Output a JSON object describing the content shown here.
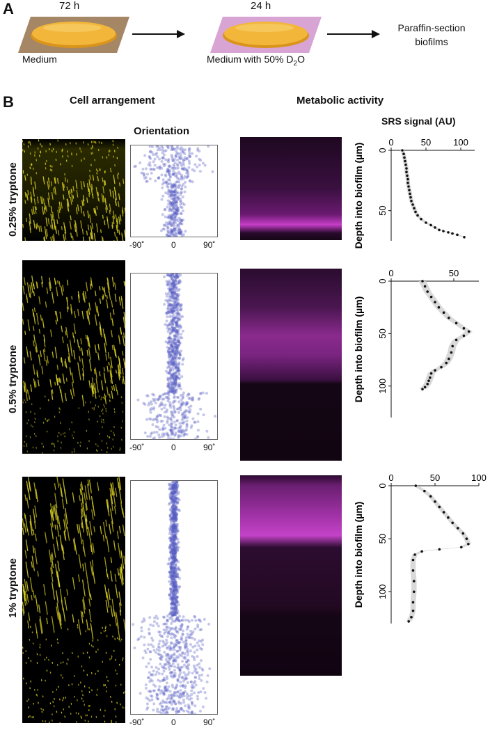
{
  "panel_a": {
    "letter": "A",
    "step1_time": "72 h",
    "step1_label": "Medium",
    "step2_time": "24 h",
    "step2_label_pre": "Medium with 50% D",
    "step2_label_sub": "2",
    "step2_label_post": "O",
    "step3_line1": "Paraffin-section",
    "step3_line2": "biofilms",
    "colors": {
      "dish": "#f2b63a",
      "medium": "#a58665",
      "d2o_medium": "#d8a4d4"
    }
  },
  "panel_b": {
    "letter": "B",
    "col_cell": "Cell arrangement",
    "col_metabolic": "Metabolic activity",
    "orientation_title": "Orientation",
    "orient_ticks": [
      "-90˚",
      "0",
      "90˚"
    ],
    "srs_title": "SRS signal (AU)",
    "depth_label": "Depth into biofilm (µm)",
    "rows": [
      {
        "label": "0.25% tryptone"
      },
      {
        "label": "0.5% tryptone"
      },
      {
        "label": "1% tryptone"
      }
    ]
  },
  "chart_data": [
    {
      "type": "scatter",
      "title": "SRS signal (AU)",
      "xlabel": "SRS signal (AU)",
      "ylabel": "Depth into biofilm (µm)",
      "xlim": [
        0,
        120
      ],
      "ylim": [
        0,
        75
      ],
      "xticks": [
        0,
        50,
        100
      ],
      "yticks": [
        0,
        50
      ],
      "series": [
        {
          "points": [
            [
              16,
              0
            ],
            [
              18,
              3
            ],
            [
              19,
              6
            ],
            [
              20,
              9
            ],
            [
              21,
              12
            ],
            [
              22,
              15
            ],
            [
              22,
              18
            ],
            [
              23,
              21
            ],
            [
              24,
              24
            ],
            [
              24,
              27
            ],
            [
              25,
              30
            ],
            [
              26,
              33
            ],
            [
              27,
              36
            ],
            [
              28,
              39
            ],
            [
              29,
              42
            ],
            [
              31,
              45
            ],
            [
              33,
              48
            ],
            [
              35,
              51
            ],
            [
              38,
              54
            ],
            [
              43,
              57
            ],
            [
              50,
              60
            ],
            [
              57,
              62
            ],
            [
              63,
              64
            ],
            [
              69,
              66
            ],
            [
              75,
              67
            ],
            [
              82,
              68
            ],
            [
              88,
              69
            ],
            [
              95,
              70
            ],
            [
              105,
              72
            ]
          ]
        }
      ]
    },
    {
      "type": "scatter",
      "title": "",
      "xlabel": "",
      "ylabel": "Depth into biofilm (µm)",
      "xlim": [
        0,
        70
      ],
      "ylim": [
        0,
        130
      ],
      "xticks": [
        0,
        50
      ],
      "yticks": [
        0,
        50,
        100
      ],
      "series": [
        {
          "points": [
            [
              25,
              0
            ],
            [
              27,
              5
            ],
            [
              29,
              10
            ],
            [
              32,
              15
            ],
            [
              35,
              20
            ],
            [
              38,
              25
            ],
            [
              42,
              30
            ],
            [
              46,
              35
            ],
            [
              52,
              40
            ],
            [
              58,
              45
            ],
            [
              62,
              48
            ],
            [
              58,
              52
            ],
            [
              52,
              56
            ],
            [
              49,
              62
            ],
            [
              48,
              68
            ],
            [
              46,
              74
            ],
            [
              44,
              78
            ],
            [
              40,
              82
            ],
            [
              35,
              85
            ],
            [
              32,
              88
            ],
            [
              31,
              92
            ],
            [
              30,
              95
            ],
            [
              29,
              98
            ],
            [
              27,
              101
            ],
            [
              25,
              103
            ]
          ]
        }
      ]
    },
    {
      "type": "scatter",
      "title": "",
      "xlabel": "",
      "ylabel": "Depth into biofilm (µm)",
      "xlim": [
        0,
        100
      ],
      "ylim": [
        0,
        130
      ],
      "xticks": [
        0,
        50,
        100
      ],
      "yticks": [
        0,
        50,
        100
      ],
      "series": [
        {
          "points": [
            [
              28,
              0
            ],
            [
              38,
              5
            ],
            [
              45,
              10
            ],
            [
              50,
              15
            ],
            [
              55,
              20
            ],
            [
              60,
              25
            ],
            [
              65,
              30
            ],
            [
              70,
              35
            ],
            [
              76,
              40
            ],
            [
              82,
              45
            ],
            [
              86,
              50
            ],
            [
              88,
              55
            ],
            [
              80,
              58
            ],
            [
              55,
              60
            ],
            [
              35,
              62
            ],
            [
              27,
              65
            ],
            [
              25,
              70
            ],
            [
              25,
              80
            ],
            [
              26,
              90
            ],
            [
              26,
              100
            ],
            [
              25,
              110
            ],
            [
              25,
              118
            ],
            [
              23,
              124
            ],
            [
              20,
              128
            ]
          ]
        }
      ]
    }
  ]
}
